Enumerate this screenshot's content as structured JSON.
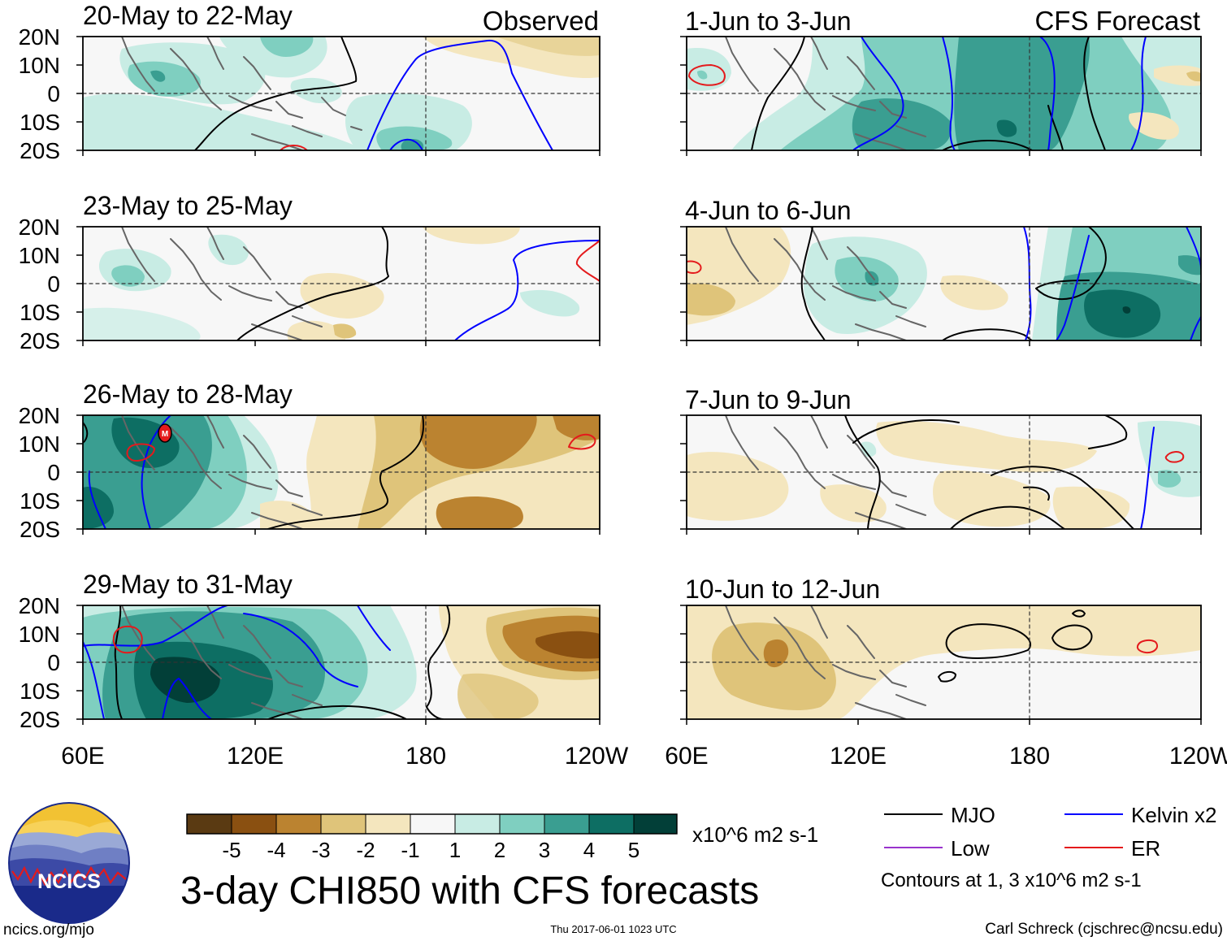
{
  "colors": {
    "brown_scale": [
      "#5a3a12",
      "#8a5011",
      "#bb8330",
      "#dfc47a",
      "#f4e6be"
    ],
    "neutral": "#f7f7f7",
    "green_scale": [
      "#c8ece4",
      "#7fcfc0",
      "#3a9e91",
      "#0d6e63",
      "#023f38"
    ],
    "mjo": "#000000",
    "kelvin": "#0000ff",
    "low": "#9933cc",
    "er": "#e41a1c",
    "coast": "#666666",
    "frame": "#000000"
  },
  "column_headers": {
    "observed": "Observed",
    "forecast": "CFS Forecast"
  },
  "panels_observed": [
    {
      "title": "20-May to 22-May"
    },
    {
      "title": "23-May to 25-May"
    },
    {
      "title": "26-May to 28-May"
    },
    {
      "title": "29-May to 31-May"
    }
  ],
  "panels_forecast": [
    {
      "title": "1-Jun to 3-Jun"
    },
    {
      "title": "4-Jun to 6-Jun"
    },
    {
      "title": "7-Jun to 9-Jun"
    },
    {
      "title": "10-Jun to 12-Jun"
    }
  ],
  "lat_labels": [
    "20N",
    "10N",
    "0",
    "10S",
    "20S"
  ],
  "lon_labels": [
    "60E",
    "120E",
    "180",
    "120W"
  ],
  "mjo_marker": "M",
  "colorbar": {
    "labels": [
      "-5",
      "-4",
      "-3",
      "-2",
      "-1",
      "1",
      "2",
      "3",
      "4",
      "5"
    ],
    "units": "x10^6 m2 s-1"
  },
  "title": "3-day CHI850 with CFS forecasts",
  "legend": {
    "mjo": "MJO",
    "kelvin": "Kelvin x2",
    "low": "Low",
    "er": "ER",
    "contours_note": "Contours at 1, 3 x10^6 m2 s-1"
  },
  "logo": {
    "text": "NCICS"
  },
  "footer": {
    "url": "ncics.org/mjo",
    "timestamp": "Thu 2017-06-01 1023 UTC",
    "author": "Carl Schreck (cjschrec@ncsu.edu)"
  }
}
